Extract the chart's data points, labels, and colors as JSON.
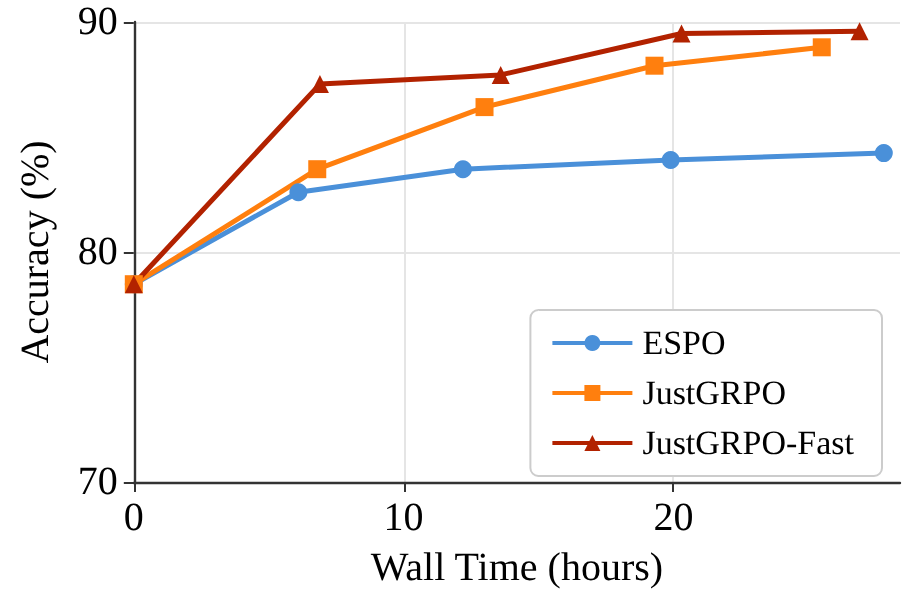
{
  "chart_data": {
    "type": "line",
    "xlabel": "Wall Time (hours)",
    "ylabel": "Accuracy (%)",
    "xlim": [
      0,
      28.4
    ],
    "xticks": [
      0,
      10,
      20
    ],
    "ylim": [
      70,
      90
    ],
    "yticks": [
      70,
      80,
      90
    ],
    "grid": true,
    "legend": "bottom right",
    "series": [
      {
        "name": "ESPO",
        "color": "#4a90d9",
        "marker": "circle",
        "x": [
          0,
          6.1,
          12.2,
          19.9,
          27.8
        ],
        "values": [
          78.6,
          82.6,
          83.6,
          84.0,
          84.3
        ]
      },
      {
        "name": "JustGRPO",
        "color": "#ff7f0e",
        "marker": "square",
        "x": [
          0,
          6.8,
          13.0,
          19.3,
          25.5
        ],
        "values": [
          78.6,
          83.6,
          86.3,
          88.1,
          88.9
        ]
      },
      {
        "name": "JustGRPO-Fast",
        "color": "#b22200",
        "marker": "triangle",
        "x": [
          0,
          6.9,
          13.6,
          20.3,
          26.9
        ],
        "values": [
          78.6,
          87.3,
          87.7,
          89.5,
          89.6
        ]
      }
    ]
  }
}
